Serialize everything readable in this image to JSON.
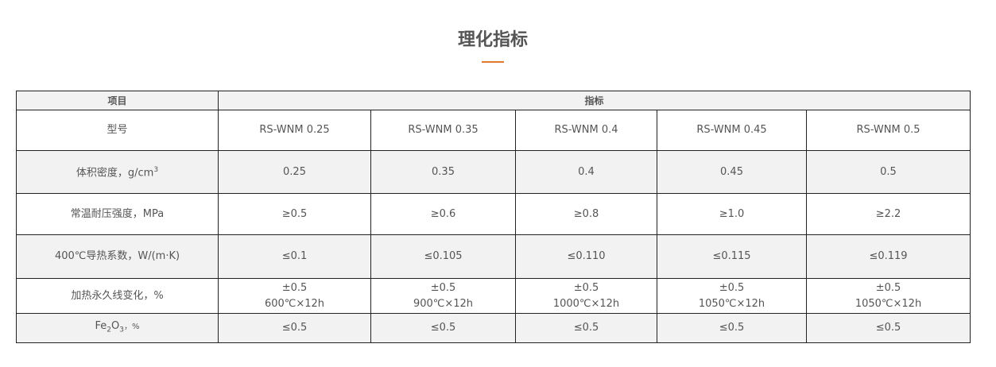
{
  "title": "理化指标",
  "accent_color": "#e07a2e",
  "header": {
    "item": "项目",
    "index": "指标"
  },
  "models": {
    "label": "型号",
    "values": [
      "RS-WNM 0.25",
      "RS-WNM 0.35",
      "RS-WNM 0.4",
      "RS-WNM 0.45",
      "RS-WNM 0.5"
    ]
  },
  "density": {
    "label": "体积密度，g/cm",
    "sup": "3",
    "values": [
      "0.25",
      "0.35",
      "0.4",
      "0.45",
      "0.5"
    ]
  },
  "strength": {
    "label": "常温耐压强度，MPa",
    "values": [
      "≥0.5",
      "≥0.6",
      "≥0.8",
      "≥1.0",
      "≥2.2"
    ]
  },
  "conductivity": {
    "label": "400℃导热系数，W/(m·K)",
    "values": [
      "≤0.1",
      "≤0.105",
      "≤0.110",
      "≤0.115",
      "≤0.119"
    ]
  },
  "linear_change": {
    "label": "加热永久线变化，%",
    "values": [
      "±0.5",
      "±0.5",
      "±0.5",
      "±0.5",
      "±0.5"
    ],
    "conditions": [
      "600℃×12h",
      "900℃×12h",
      "1000℃×12h",
      "1050℃×12h",
      "1050℃×12h"
    ]
  },
  "fe2o3": {
    "label_a": "Fe",
    "sub_a": "2",
    "label_b": "O",
    "sub_b": "3",
    "label_c": "，%",
    "values": [
      "≤0.5",
      "≤0.5",
      "≤0.5",
      "≤0.5",
      "≤0.5"
    ]
  }
}
